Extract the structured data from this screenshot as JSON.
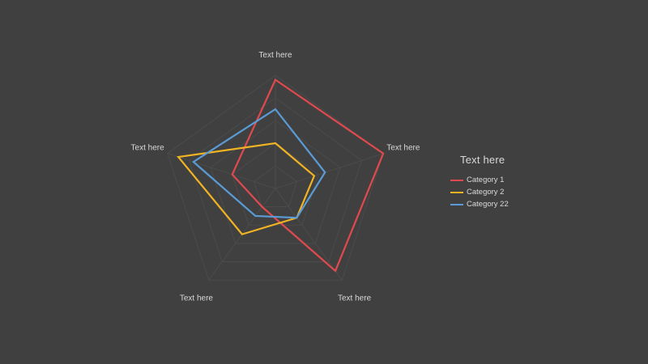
{
  "chart_data": {
    "type": "radar",
    "axes": [
      "Text here",
      "Text here",
      "Text here",
      "Text here",
      "Text here"
    ],
    "range": [
      0,
      5
    ],
    "levels": 5,
    "grid": true,
    "legend_title": "Text  here",
    "legend_position": "right",
    "series": [
      {
        "name": "Category 1",
        "color": "#e04a4e",
        "values": [
          4.8,
          5.0,
          4.5,
          1.0,
          2.0
        ]
      },
      {
        "name": "Category 2",
        "color": "#f0b323",
        "values": [
          2.0,
          1.8,
          1.6,
          2.5,
          4.5
        ]
      },
      {
        "name": "Category 22",
        "color": "#5b9bd5",
        "values": [
          3.5,
          2.3,
          1.6,
          1.5,
          3.8
        ]
      }
    ]
  }
}
